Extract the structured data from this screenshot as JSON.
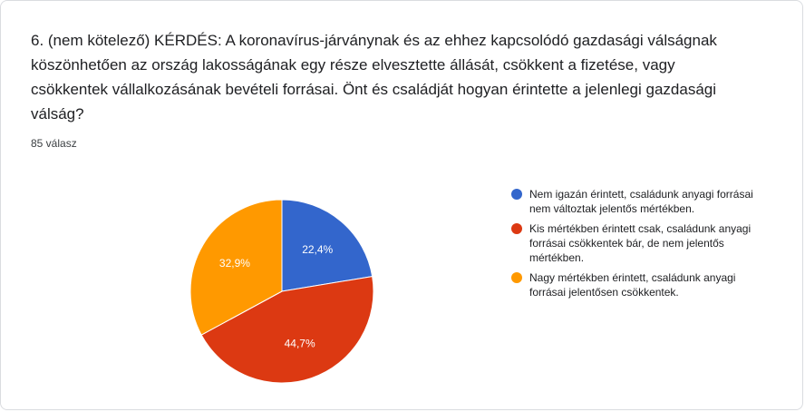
{
  "question": {
    "title": "6. (nem kötelező) KÉRDÉS: A koronavírus-járványnak és az ehhez kapcsolódó gazdasági válságnak köszönhetően az ország lakosságának egy része elvesztette állását, csökkent a fizetése, vagy csökkentek vállalkozásának bevételi forrásai. Önt és családját hogyan érintette a jelenlegi gazdasági válság?",
    "response_count": "85 válasz"
  },
  "chart_data": {
    "type": "pie",
    "start_angle_deg": 90,
    "direction": "clockwise",
    "labels": [
      "Nem igazán érintett, családunk anyagi forrásai nem változtak jelentős mértékben.",
      "Kis mértékben érintett csak, családunk anyagi forrásai csökkentek bár, de nem jelentős mértékben.",
      "Nagy mértékben érintett, családunk anyagi forrásai jelentősen csökkentek."
    ],
    "values": [
      22.4,
      44.7,
      32.9
    ],
    "value_labels": [
      "22,4%",
      "44,7%",
      "32,9%"
    ],
    "colors": [
      "#3366cc",
      "#dc3912",
      "#ff9900"
    ],
    "legend_position": "right"
  }
}
